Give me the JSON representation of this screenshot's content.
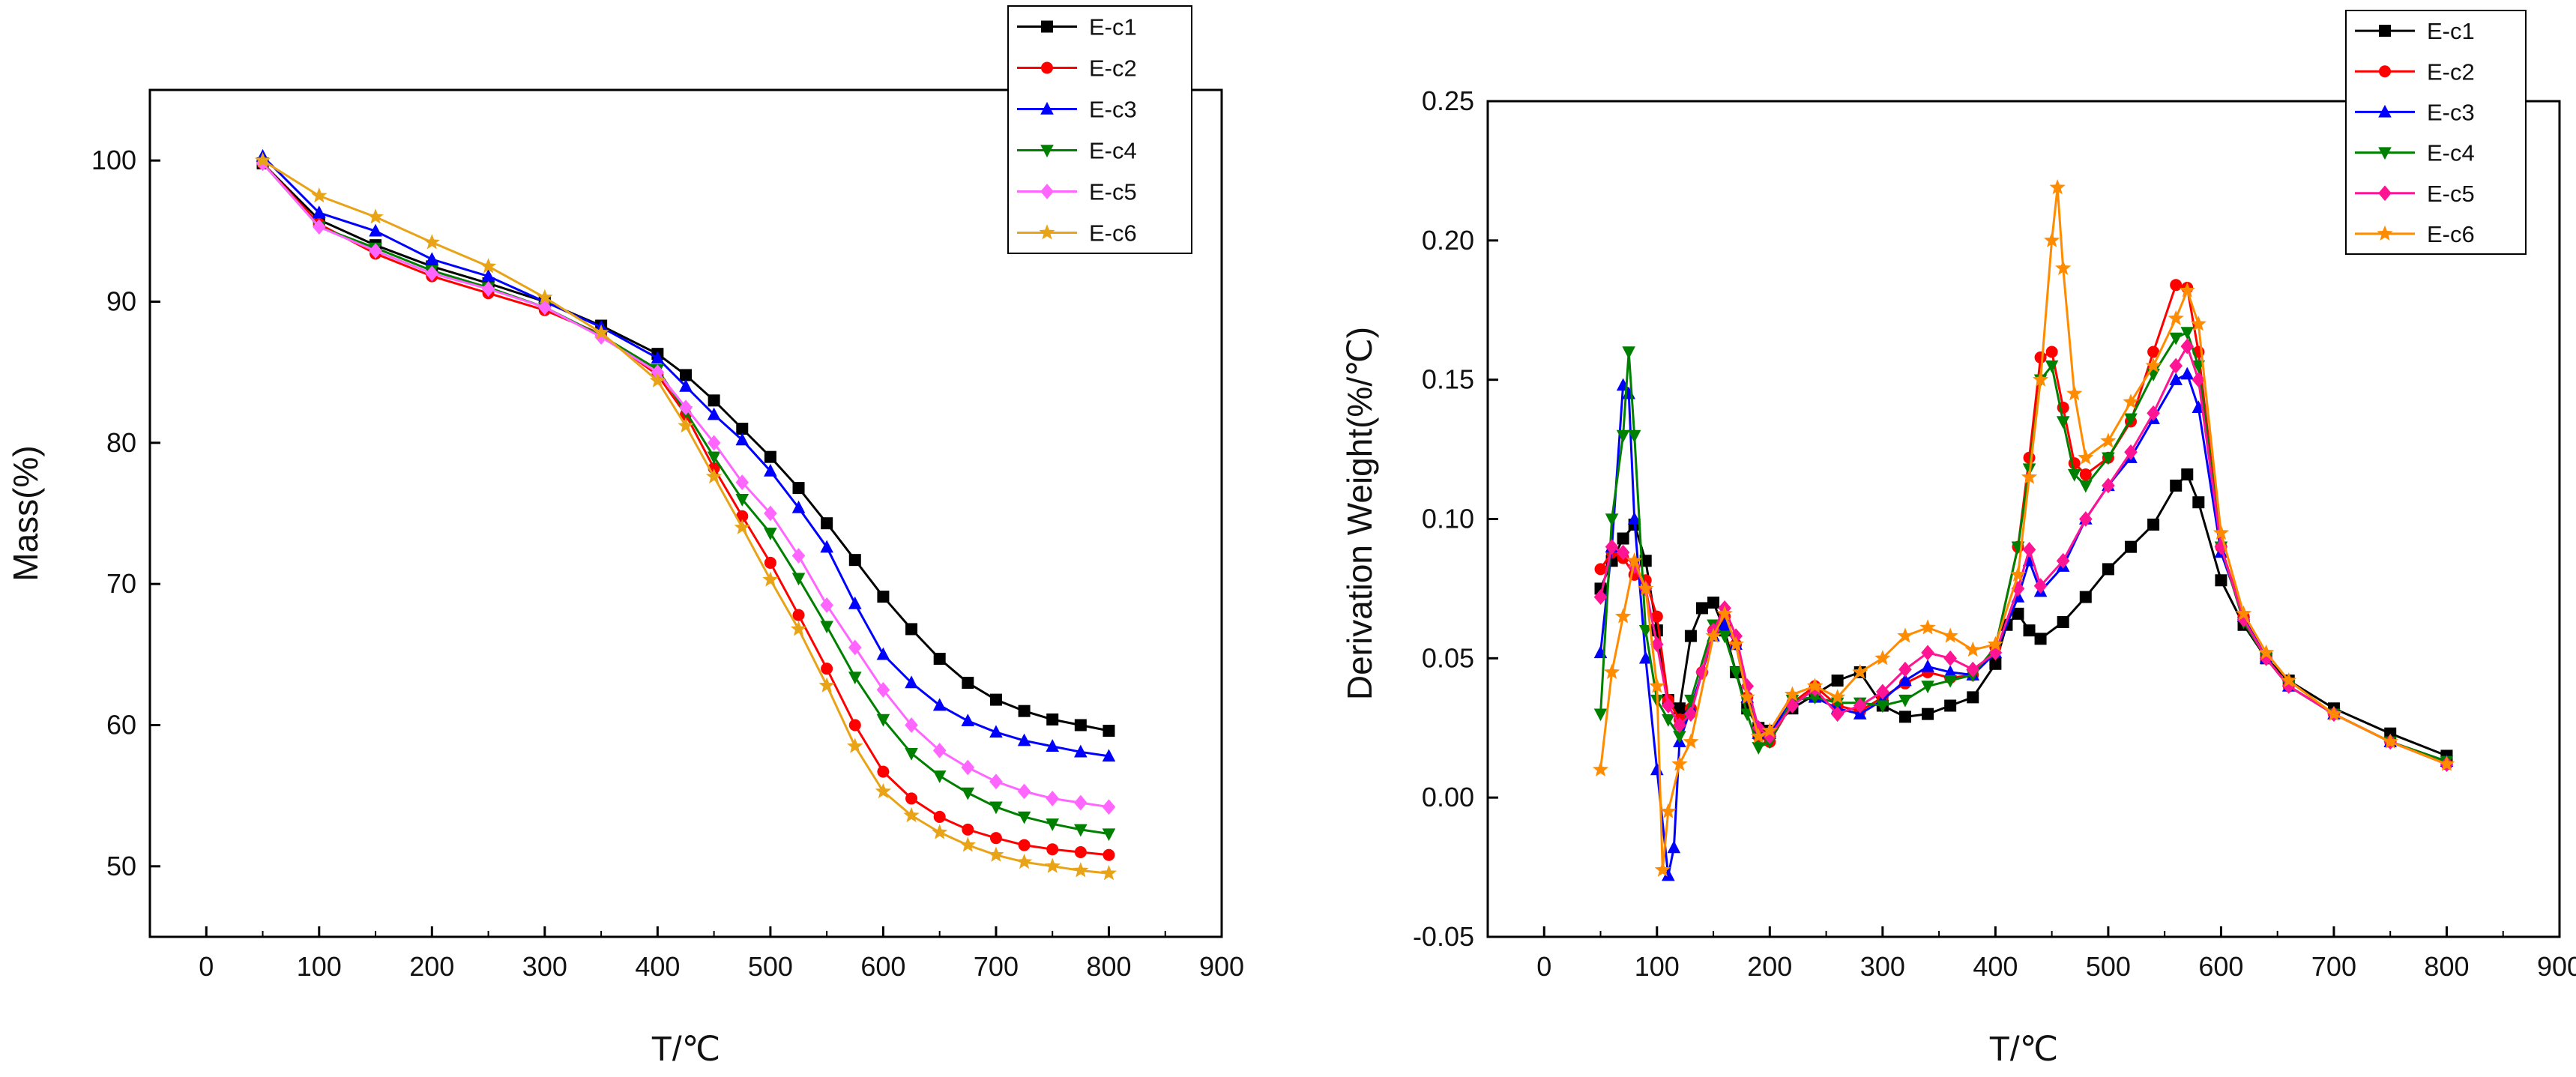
{
  "chart_data": [
    {
      "type": "line",
      "title": "",
      "xlabel": "T/℃",
      "ylabel": "Mass(%)",
      "xlim": [
        -50,
        900
      ],
      "ylim": [
        45,
        105
      ],
      "xticks": [
        "0",
        "100",
        "200",
        "300",
        "400",
        "500",
        "600",
        "700",
        "800",
        "900"
      ],
      "yticks": [
        "50",
        "60",
        "70",
        "80",
        "90",
        "100"
      ],
      "legend_position": "top-right",
      "series": [
        {
          "name": "E-c1",
          "color": "#000000",
          "marker": "square",
          "x": [
            50,
            100,
            150,
            200,
            250,
            300,
            350,
            400,
            425,
            450,
            475,
            500,
            525,
            550,
            575,
            600,
            625,
            650,
            675,
            700,
            725,
            750,
            775,
            800
          ],
          "y": [
            99.8,
            95.8,
            94.0,
            92.5,
            91.3,
            90.0,
            88.3,
            86.3,
            84.8,
            83.0,
            81.0,
            79.0,
            76.8,
            74.3,
            71.7,
            69.1,
            66.8,
            64.7,
            63.0,
            61.8,
            61.0,
            60.4,
            60.0,
            59.6
          ]
        },
        {
          "name": "E-c2",
          "color": "#ff0000",
          "marker": "circle",
          "x": [
            50,
            100,
            150,
            200,
            250,
            300,
            350,
            400,
            425,
            450,
            475,
            500,
            525,
            550,
            575,
            600,
            625,
            650,
            675,
            700,
            725,
            750,
            775,
            800
          ],
          "y": [
            99.8,
            95.5,
            93.4,
            91.8,
            90.6,
            89.4,
            87.7,
            84.8,
            82.0,
            78.2,
            74.8,
            71.5,
            67.8,
            64.0,
            60.0,
            56.7,
            54.8,
            53.5,
            52.6,
            52.0,
            51.5,
            51.2,
            51.0,
            50.8
          ]
        },
        {
          "name": "E-c3",
          "color": "#0000ff",
          "marker": "triangle-up",
          "x": [
            50,
            100,
            150,
            200,
            250,
            300,
            350,
            400,
            425,
            450,
            475,
            500,
            525,
            550,
            575,
            600,
            625,
            650,
            675,
            700,
            725,
            750,
            775,
            800
          ],
          "y": [
            100.3,
            96.3,
            95.0,
            93.0,
            91.8,
            90.0,
            88.2,
            86.0,
            84.0,
            82.0,
            80.2,
            78.0,
            75.4,
            72.6,
            68.6,
            65.0,
            63.0,
            61.4,
            60.3,
            59.5,
            58.9,
            58.5,
            58.1,
            57.8
          ]
        },
        {
          "name": "E-c4",
          "color": "#008000",
          "marker": "triangle-down",
          "x": [
            50,
            100,
            150,
            200,
            250,
            300,
            350,
            400,
            425,
            450,
            475,
            500,
            525,
            550,
            575,
            600,
            625,
            650,
            675,
            700,
            725,
            750,
            775,
            800
          ],
          "y": [
            99.8,
            95.3,
            93.8,
            92.2,
            91.0,
            89.6,
            87.6,
            85.2,
            82.2,
            79.0,
            76.0,
            73.6,
            70.4,
            67.0,
            63.4,
            60.4,
            58.0,
            56.4,
            55.2,
            54.2,
            53.5,
            53.0,
            52.6,
            52.3
          ]
        },
        {
          "name": "E-c5",
          "color": "#ff66ff",
          "marker": "diamond",
          "x": [
            50,
            100,
            150,
            200,
            250,
            300,
            350,
            400,
            425,
            450,
            475,
            500,
            525,
            550,
            575,
            600,
            625,
            650,
            675,
            700,
            725,
            750,
            775,
            800
          ],
          "y": [
            99.8,
            95.3,
            93.6,
            92.0,
            90.9,
            89.6,
            87.5,
            85.0,
            82.5,
            80.0,
            77.2,
            75.0,
            72.0,
            68.5,
            65.5,
            62.5,
            60.0,
            58.2,
            57.0,
            56.0,
            55.3,
            54.8,
            54.5,
            54.2
          ]
        },
        {
          "name": "E-c6",
          "color": "#e8a317",
          "marker": "star",
          "x": [
            50,
            100,
            150,
            200,
            250,
            300,
            350,
            400,
            425,
            450,
            475,
            500,
            525,
            550,
            575,
            600,
            625,
            650,
            675,
            700,
            725,
            750,
            775,
            800
          ],
          "y": [
            100.0,
            97.5,
            96.0,
            94.2,
            92.5,
            90.3,
            87.8,
            84.4,
            81.2,
            77.6,
            74.0,
            70.3,
            66.8,
            62.8,
            58.5,
            55.3,
            53.6,
            52.4,
            51.5,
            50.8,
            50.3,
            50.0,
            49.7,
            49.5
          ]
        }
      ]
    },
    {
      "type": "line",
      "title": "",
      "xlabel": "T/℃",
      "ylabel": "Derivation Weight(%/℃)",
      "xlim": [
        -50,
        900
      ],
      "ylim": [
        -0.05,
        0.25
      ],
      "xticks": [
        "0",
        "100",
        "200",
        "300",
        "400",
        "500",
        "600",
        "700",
        "800",
        "900"
      ],
      "yticks": [
        "-0.05",
        "0.00",
        "0.05",
        "0.10",
        "0.15",
        "0.20",
        "0.25"
      ],
      "legend_position": "top-right",
      "series": [
        {
          "name": "E-c1",
          "color": "#000000",
          "marker": "square",
          "x": [
            50,
            60,
            70,
            80,
            90,
            100,
            110,
            120,
            130,
            140,
            150,
            160,
            170,
            180,
            190,
            200,
            220,
            240,
            260,
            280,
            300,
            320,
            340,
            360,
            380,
            400,
            410,
            420,
            430,
            440,
            460,
            480,
            500,
            520,
            540,
            560,
            570,
            580,
            600,
            620,
            640,
            660,
            700,
            750,
            800
          ],
          "y": [
            0.075,
            0.085,
            0.093,
            0.098,
            0.085,
            0.06,
            0.035,
            0.032,
            0.058,
            0.068,
            0.07,
            0.06,
            0.045,
            0.032,
            0.025,
            0.024,
            0.032,
            0.037,
            0.042,
            0.045,
            0.033,
            0.029,
            0.03,
            0.033,
            0.036,
            0.048,
            0.062,
            0.066,
            0.06,
            0.057,
            0.063,
            0.072,
            0.082,
            0.09,
            0.098,
            0.112,
            0.116,
            0.106,
            0.078,
            0.062,
            0.05,
            0.042,
            0.032,
            0.023,
            0.015
          ]
        },
        {
          "name": "E-c2",
          "color": "#ff0000",
          "marker": "circle",
          "x": [
            50,
            60,
            70,
            80,
            90,
            100,
            110,
            120,
            130,
            140,
            150,
            160,
            170,
            180,
            190,
            200,
            220,
            240,
            260,
            280,
            300,
            320,
            340,
            360,
            380,
            400,
            420,
            430,
            440,
            450,
            460,
            470,
            480,
            500,
            520,
            540,
            560,
            570,
            580,
            600,
            620,
            640,
            660,
            700,
            750,
            800
          ],
          "y": [
            0.082,
            0.088,
            0.086,
            0.08,
            0.078,
            0.065,
            0.035,
            0.028,
            0.032,
            0.045,
            0.06,
            0.065,
            0.055,
            0.036,
            0.022,
            0.02,
            0.034,
            0.04,
            0.033,
            0.031,
            0.036,
            0.041,
            0.045,
            0.043,
            0.044,
            0.054,
            0.09,
            0.122,
            0.158,
            0.16,
            0.14,
            0.12,
            0.116,
            0.122,
            0.135,
            0.16,
            0.184,
            0.183,
            0.16,
            0.09,
            0.065,
            0.05,
            0.04,
            0.03,
            0.02,
            0.012
          ]
        },
        {
          "name": "E-c3",
          "color": "#0000ff",
          "marker": "triangle-up",
          "x": [
            50,
            60,
            70,
            75,
            80,
            90,
            100,
            110,
            115,
            120,
            130,
            150,
            160,
            170,
            180,
            190,
            200,
            220,
            240,
            260,
            280,
            300,
            320,
            340,
            360,
            380,
            400,
            420,
            430,
            440,
            460,
            480,
            500,
            520,
            540,
            560,
            570,
            580,
            600,
            620,
            640,
            660,
            700,
            750,
            800
          ],
          "y": [
            0.052,
            0.09,
            0.148,
            0.145,
            0.1,
            0.05,
            0.01,
            -0.028,
            -0.018,
            0.02,
            0.032,
            0.058,
            0.062,
            0.055,
            0.036,
            0.023,
            0.023,
            0.035,
            0.036,
            0.032,
            0.03,
            0.035,
            0.042,
            0.047,
            0.045,
            0.044,
            0.052,
            0.072,
            0.085,
            0.074,
            0.083,
            0.1,
            0.112,
            0.122,
            0.136,
            0.15,
            0.152,
            0.14,
            0.088,
            0.065,
            0.05,
            0.04,
            0.03,
            0.02,
            0.013
          ]
        },
        {
          "name": "E-c4",
          "color": "#008000",
          "marker": "triangle-down",
          "x": [
            50,
            60,
            70,
            75,
            80,
            90,
            100,
            110,
            120,
            130,
            150,
            160,
            170,
            180,
            190,
            200,
            220,
            240,
            260,
            280,
            300,
            320,
            340,
            360,
            380,
            400,
            420,
            430,
            440,
            450,
            460,
            470,
            480,
            500,
            520,
            540,
            560,
            570,
            580,
            600,
            620,
            640,
            660,
            700,
            750,
            800
          ],
          "y": [
            0.03,
            0.1,
            0.13,
            0.16,
            0.13,
            0.06,
            0.035,
            0.028,
            0.022,
            0.035,
            0.062,
            0.058,
            0.045,
            0.03,
            0.018,
            0.02,
            0.035,
            0.036,
            0.034,
            0.034,
            0.033,
            0.035,
            0.04,
            0.042,
            0.044,
            0.054,
            0.09,
            0.118,
            0.15,
            0.155,
            0.135,
            0.116,
            0.112,
            0.122,
            0.136,
            0.152,
            0.165,
            0.167,
            0.155,
            0.09,
            0.063,
            0.05,
            0.04,
            0.03,
            0.02,
            0.013
          ]
        },
        {
          "name": "E-c5",
          "color": "#ff1493",
          "marker": "diamond",
          "x": [
            50,
            60,
            70,
            80,
            90,
            100,
            110,
            120,
            130,
            140,
            150,
            160,
            170,
            180,
            190,
            200,
            220,
            240,
            260,
            280,
            300,
            320,
            340,
            360,
            380,
            400,
            420,
            430,
            440,
            460,
            480,
            500,
            520,
            540,
            560,
            570,
            580,
            600,
            620,
            640,
            660,
            700,
            750,
            800
          ],
          "y": [
            0.072,
            0.09,
            0.088,
            0.083,
            0.075,
            0.055,
            0.033,
            0.026,
            0.03,
            0.045,
            0.06,
            0.068,
            0.058,
            0.04,
            0.025,
            0.022,
            0.033,
            0.039,
            0.03,
            0.033,
            0.038,
            0.046,
            0.052,
            0.05,
            0.046,
            0.052,
            0.075,
            0.089,
            0.076,
            0.085,
            0.1,
            0.112,
            0.124,
            0.138,
            0.155,
            0.162,
            0.15,
            0.09,
            0.064,
            0.05,
            0.04,
            0.03,
            0.02,
            0.012
          ]
        },
        {
          "name": "E-c6",
          "color": "#ff8c00",
          "marker": "star",
          "x": [
            50,
            60,
            70,
            80,
            90,
            100,
            105,
            110,
            120,
            130,
            150,
            160,
            170,
            180,
            190,
            200,
            220,
            240,
            260,
            280,
            300,
            320,
            340,
            360,
            380,
            400,
            420,
            430,
            440,
            450,
            455,
            460,
            470,
            480,
            500,
            520,
            540,
            560,
            570,
            580,
            600,
            620,
            640,
            660,
            700,
            750,
            800
          ],
          "y": [
            0.01,
            0.045,
            0.065,
            0.085,
            0.075,
            0.04,
            -0.026,
            -0.005,
            0.012,
            0.02,
            0.058,
            0.066,
            0.055,
            0.036,
            0.022,
            0.024,
            0.037,
            0.04,
            0.036,
            0.045,
            0.05,
            0.058,
            0.061,
            0.058,
            0.053,
            0.055,
            0.08,
            0.115,
            0.15,
            0.2,
            0.219,
            0.19,
            0.145,
            0.122,
            0.128,
            0.142,
            0.155,
            0.172,
            0.182,
            0.17,
            0.095,
            0.066,
            0.052,
            0.042,
            0.03,
            0.02,
            0.012
          ]
        }
      ]
    }
  ]
}
